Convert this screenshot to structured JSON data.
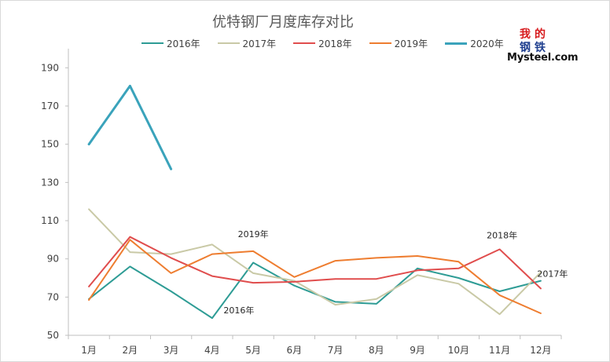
{
  "chart_data": {
    "type": "line",
    "title": "优特钢厂月度库存对比",
    "categories": [
      "1月",
      "2月",
      "3月",
      "4月",
      "5月",
      "6月",
      "7月",
      "8月",
      "9月",
      "10月",
      "11月",
      "12月"
    ],
    "ylim": [
      50,
      200
    ],
    "yticks": [
      50,
      70,
      90,
      110,
      130,
      150,
      170,
      190
    ],
    "grid": false,
    "legend_position": "top",
    "series": [
      {
        "name": "2016年",
        "color": "#2e9c95",
        "width": 2,
        "values": [
          69,
          86,
          73,
          59,
          88,
          76,
          67.5,
          66.5,
          85,
          80,
          73,
          78.5
        ]
      },
      {
        "name": "2017年",
        "color": "#c9c9a6",
        "width": 2,
        "values": [
          116,
          93.5,
          92.5,
          97.5,
          82.5,
          78.5,
          66,
          69,
          81.5,
          77,
          61,
          83
        ]
      },
      {
        "name": "2018年",
        "color": "#e04d4d",
        "width": 2,
        "values": [
          75.5,
          101.5,
          90.5,
          81,
          77.5,
          78,
          79.5,
          79.5,
          84,
          85,
          95,
          74.5
        ]
      },
      {
        "name": "2019年",
        "color": "#ee7d30",
        "width": 2,
        "values": [
          68.5,
          100,
          82.5,
          92.5,
          94,
          80.5,
          89,
          90.5,
          91.5,
          88.5,
          71,
          61.5
        ]
      },
      {
        "name": "2020年",
        "color": "#3aa3bb",
        "width": 3,
        "values": [
          150,
          180.5,
          137,
          null,
          null,
          null,
          null,
          null,
          null,
          null,
          null,
          null
        ]
      }
    ],
    "annotations": [
      {
        "text": "2019年",
        "series": "2019年",
        "category": "5月"
      },
      {
        "text": "2016年",
        "series": "2016年",
        "category": "4月"
      },
      {
        "text": "2018年",
        "series": "2018年",
        "category": "11月"
      },
      {
        "text": "2017年",
        "series": "2017年",
        "category": "12月"
      }
    ]
  },
  "logo": {
    "chars": [
      "我",
      "的",
      "钢",
      "铁"
    ],
    "char_colors": [
      "#d7191c",
      "#d7191c",
      "#1f3f8f",
      "#1f3f8f"
    ],
    "text": "Mysteel.com"
  }
}
